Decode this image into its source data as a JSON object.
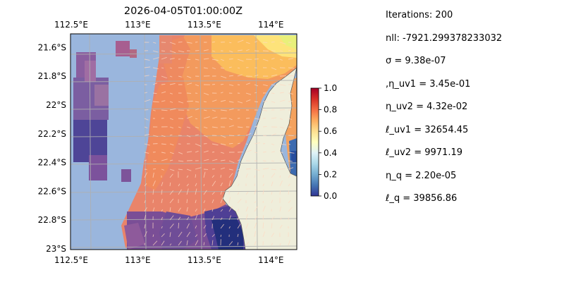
{
  "chart_data": {
    "type": "heatmap",
    "title": "2026-04-05T01:00:00Z",
    "x_ticks": [
      "112.5°E",
      "113°E",
      "113.5°E",
      "114°E"
    ],
    "x_tick_values": [
      112.5,
      113.0,
      113.5,
      114.0
    ],
    "y_ticks": [
      "21.6°S",
      "21.8°S",
      "22°S",
      "22.2°S",
      "22.4°S",
      "22.6°S",
      "22.8°S",
      "23°S"
    ],
    "y_tick_values": [
      -21.6,
      -21.8,
      -22.0,
      -22.2,
      -22.4,
      -22.6,
      -22.8,
      -23.0
    ],
    "xlim": [
      112.5,
      114.2
    ],
    "ylim": [
      -23.0,
      -21.5
    ],
    "colorbar": {
      "ticks": [
        "0.0",
        "0.2",
        "0.4",
        "0.6",
        "0.8",
        "1.0"
      ],
      "tick_values": [
        0.0,
        0.2,
        0.4,
        0.6,
        0.8,
        1.0
      ],
      "range": [
        0.0,
        1.0
      ],
      "colormap": "RdYlBu_r"
    },
    "ocean_color": "#9ab6dd",
    "land_color": "#efeedb",
    "grid": true,
    "overlay": "velocity arrows"
  },
  "params": [
    "Iterations: 200",
    "nll: -7921.299378233032",
    "σ = 9.38e-07",
    ",η_uv1 = 3.45e-01",
    "η_uv2 = 4.32e-02",
    "ℓ_uv1 = 32654.45",
    "ℓ_uv2 = 9971.19",
    "η_q = 2.20e-05",
    "ℓ_q = 39856.86"
  ]
}
